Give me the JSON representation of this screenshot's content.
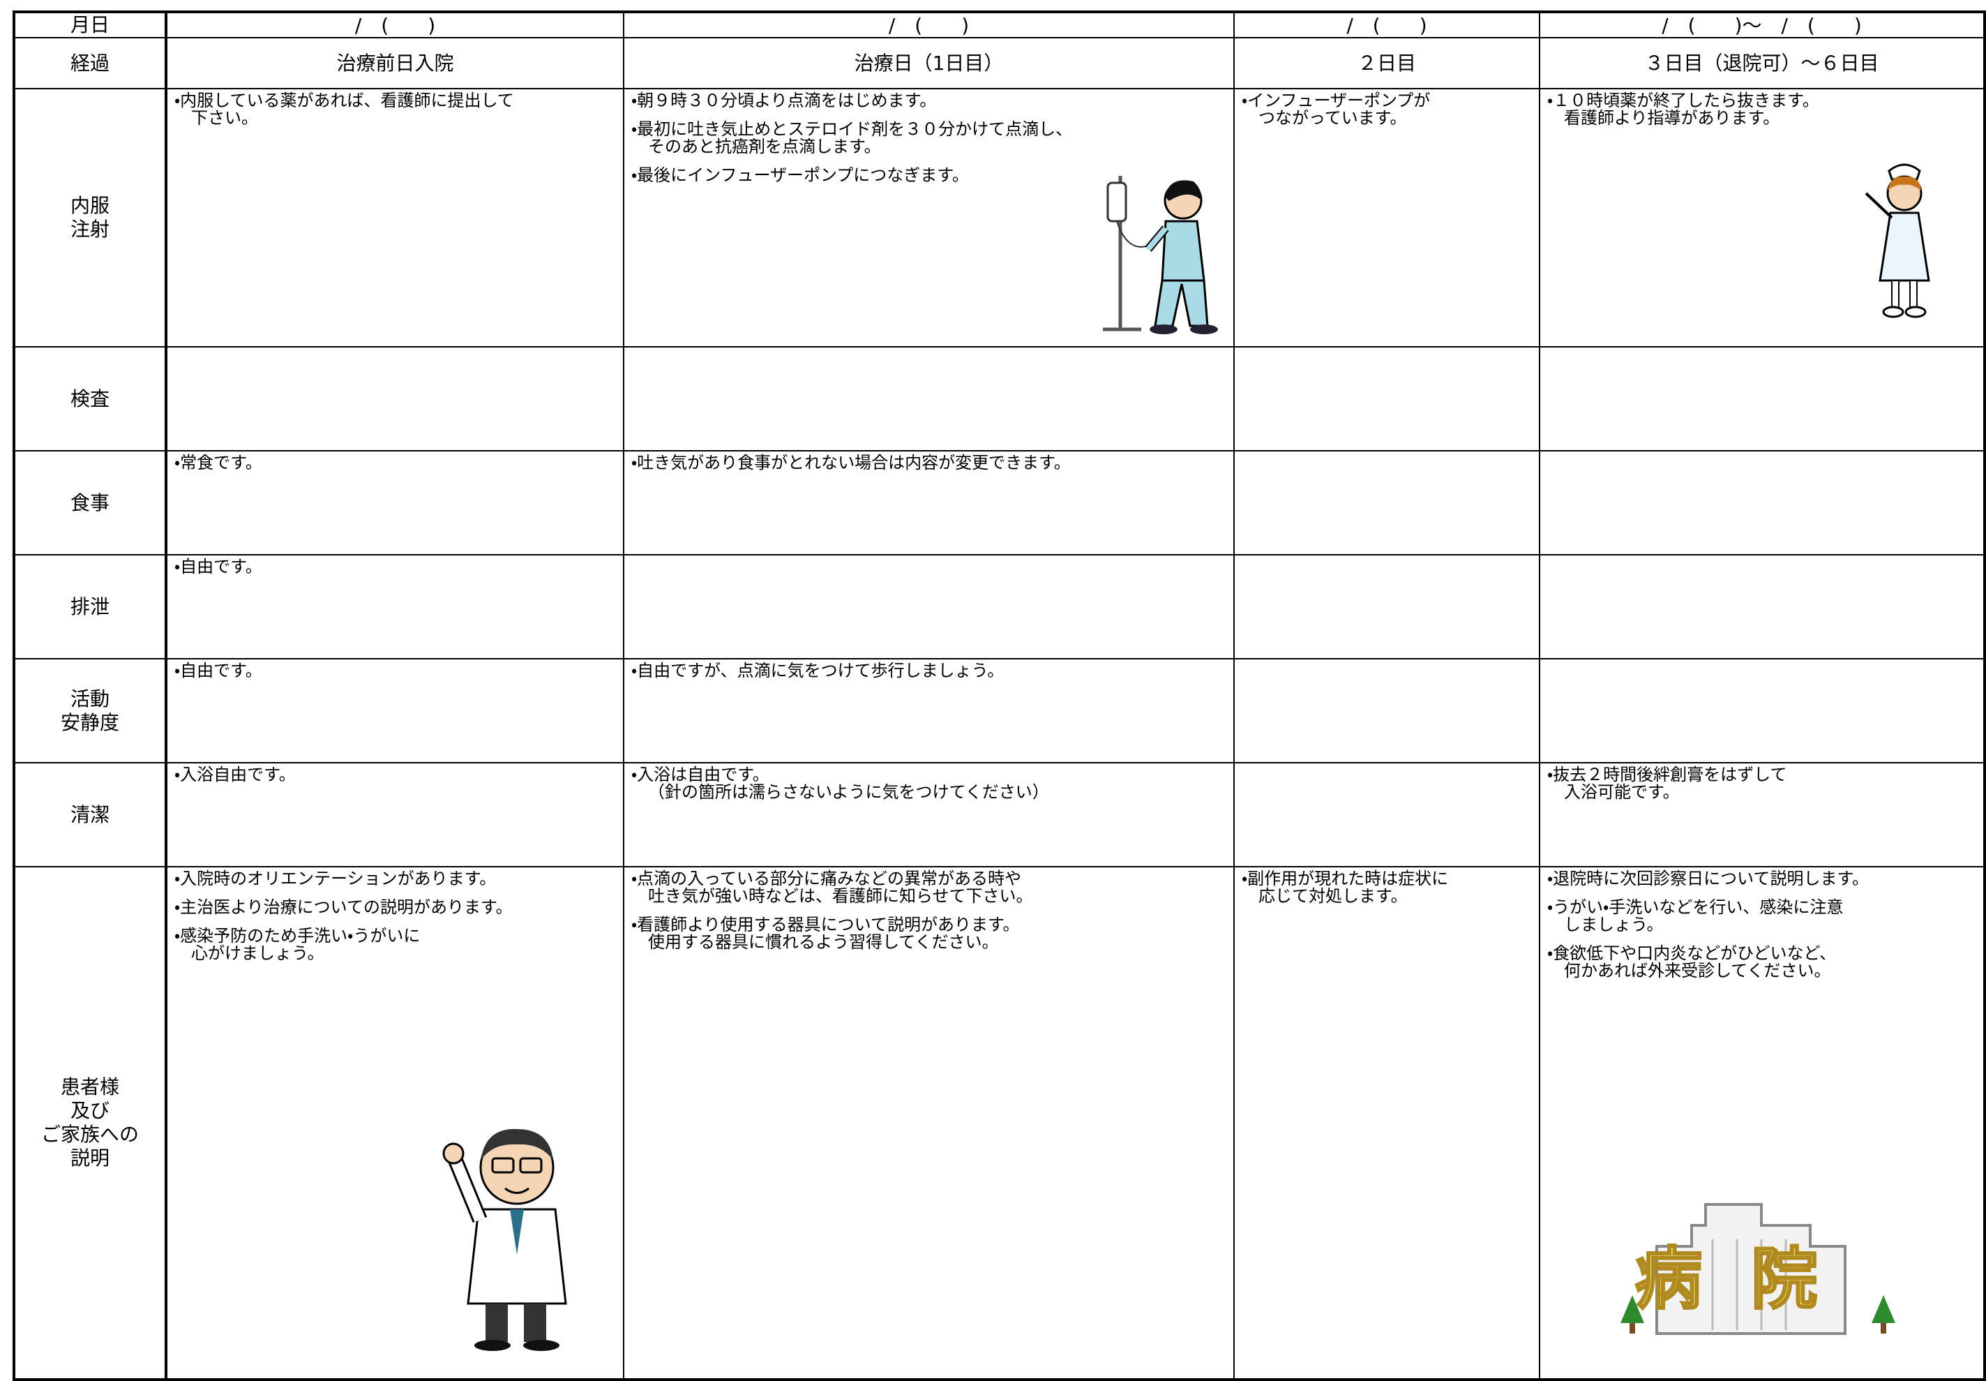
{
  "table": {
    "dates": {
      "label": "月日",
      "cells": [
        "/　(　　)",
        "/　(　　)",
        "/　(　　)",
        "/　(　　)～　/　(　　)"
      ]
    },
    "phases": {
      "label": "経過",
      "cells": [
        "治療前日入院",
        "治療日（1日目）",
        "２日目",
        "３日目（退院可）～６日目"
      ]
    },
    "rows": [
      {
        "label": [
          "内服",
          "注射"
        ],
        "cells": [
          [
            [
              "・内服している薬があれば、看護師に提出して",
              "下さい。"
            ]
          ],
          [
            [
              "・朝９時３０分頃より点滴をはじめます。"
            ],
            [
              "・最初に吐き気止めとステロイド剤を３０分かけて点滴し、",
              "そのあと抗癌剤を点滴します。"
            ],
            [
              "・最後にインフューザーポンプにつなぎます。"
            ]
          ],
          [
            [
              "・インフューザーポンプが",
              "つながっています。"
            ]
          ],
          [
            [
              "・１０時頃薬が終了したら抜きます。",
              "看護師より指導があります。"
            ]
          ]
        ]
      },
      {
        "label": [
          "検査"
        ],
        "cells": [
          [],
          [],
          [],
          []
        ]
      },
      {
        "label": [
          "食事"
        ],
        "cells": [
          [
            [
              "・常食です。"
            ]
          ],
          [
            [
              "・吐き気があり食事がとれない場合は内容が変更できます。"
            ]
          ],
          [],
          []
        ]
      },
      {
        "label": [
          "排泄"
        ],
        "cells": [
          [
            [
              "・自由です。"
            ]
          ],
          [],
          [],
          []
        ]
      },
      {
        "label": [
          "活動",
          "安静度"
        ],
        "cells": [
          [
            [
              "・自由です。"
            ]
          ],
          [
            [
              "・自由ですが、点滴に気をつけて歩行しましょう。"
            ]
          ],
          [],
          []
        ]
      },
      {
        "label": [
          "清潔"
        ],
        "cells": [
          [
            [
              "・入浴自由です。"
            ]
          ],
          [
            [
              "・入浴は自由です。",
              "（針の箇所は濡らさないように気をつけてください）"
            ]
          ],
          [],
          [
            [
              "・抜去２時間後絆創膏をはずして",
              "入浴可能です。"
            ]
          ]
        ]
      },
      {
        "label": [
          "患者様",
          "及び",
          "ご家族への",
          "説明"
        ],
        "cells": [
          [
            [
              "・入院時のオリエンテーションがあります。"
            ],
            [
              "・主治医より治療についての説明があります。"
            ],
            [
              "・感染予防のため手洗い・うがいに",
              "心がけましょう。"
            ]
          ],
          [
            [
              "・点滴の入っている部分に痛みなどの異常がある時や",
              "吐き気が強い時などは、看護師に知らせて下さい。"
            ],
            [
              "・看護師より使用する器具について説明があります。",
              "使用する器具に慣れるよう習得してください。"
            ]
          ],
          [
            [
              "・副作用が現れた時は症状に",
              "応じて対処します。"
            ]
          ],
          [
            [
              "・退院時に次回診察日について説明します。"
            ],
            [
              "・うがい・手洗いなどを行い、感染に注意",
              "しましょう。"
            ],
            [
              "・食欲低下や口内炎などがひどいなど、",
              "何かあれば外来受診してください。"
            ]
          ]
        ]
      }
    ]
  },
  "hospital_sign": "病院"
}
